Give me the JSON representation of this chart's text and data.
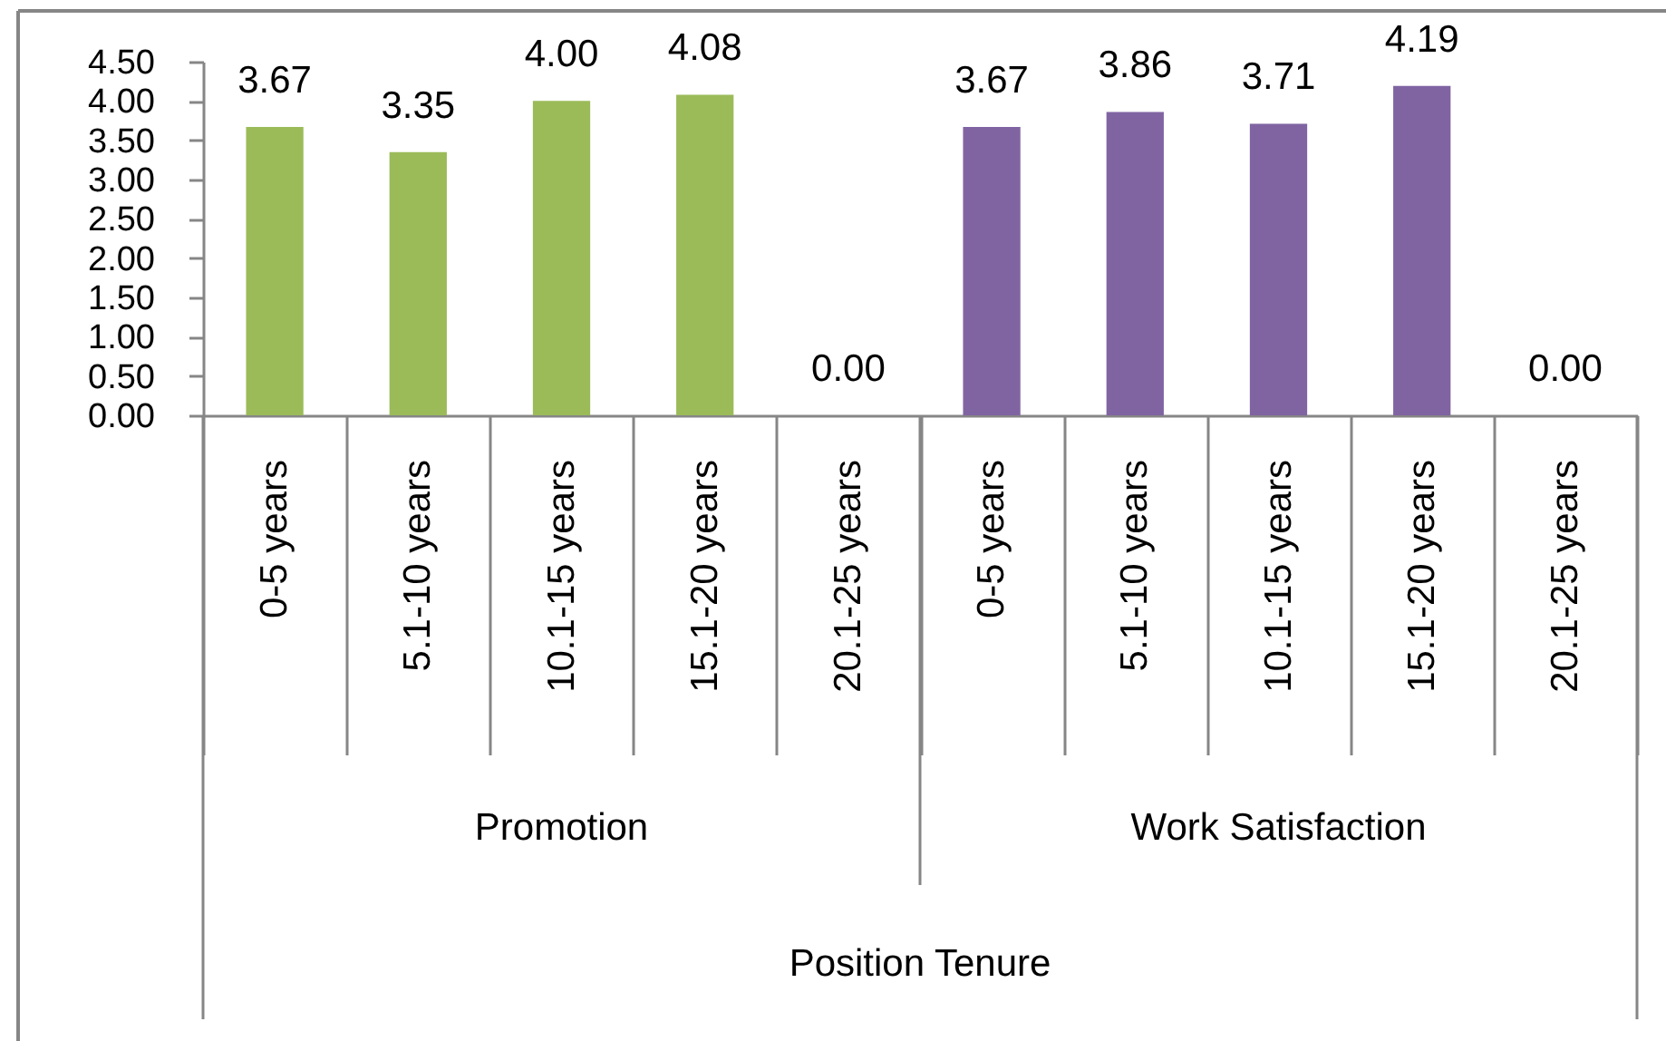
{
  "chart_data": {
    "type": "bar",
    "categories": [
      "0-5 years",
      "5.1-10 years",
      "10.1-15 years",
      "15.1-20 years",
      "20.1-25 years",
      "0-5 years",
      "5.1-10 years",
      "10.1-15 years",
      "15.1-20 years",
      "20.1-25 years"
    ],
    "series": [
      {
        "color": "#9bbb59",
        "values": [
          3.67,
          3.35,
          4.0,
          4.08,
          0.0,
          null,
          null,
          null,
          null,
          null
        ],
        "value_labels": [
          "3.67",
          "3.35",
          "4.00",
          "4.08",
          "0.00",
          null,
          null,
          null,
          null,
          null
        ]
      },
      {
        "color": "#8064a2",
        "values": [
          null,
          null,
          null,
          null,
          null,
          3.67,
          3.86,
          3.71,
          4.19,
          0.0
        ],
        "value_labels": [
          null,
          null,
          null,
          null,
          null,
          "3.67",
          "3.86",
          "3.71",
          "4.19",
          "0.00"
        ]
      }
    ],
    "annotations": [
      "Promotion",
      "Work Satisfaction",
      "Position Tenure"
    ],
    "ylim": [
      0,
      4.5
    ],
    "yticks": [
      {
        "value": 0,
        "label": "0.00"
      },
      {
        "value": 0.5,
        "label": "0.50"
      },
      {
        "value": 1,
        "label": "1.00"
      },
      {
        "value": 1.5,
        "label": "1.50"
      },
      {
        "value": 2,
        "label": "2.00"
      },
      {
        "value": 2.5,
        "label": "2.50"
      },
      {
        "value": 3,
        "label": "3.00"
      },
      {
        "value": 3.5,
        "label": "3.50"
      },
      {
        "value": 4,
        "label": "4.00"
      },
      {
        "value": 4.5,
        "label": "4.50"
      }
    ]
  }
}
